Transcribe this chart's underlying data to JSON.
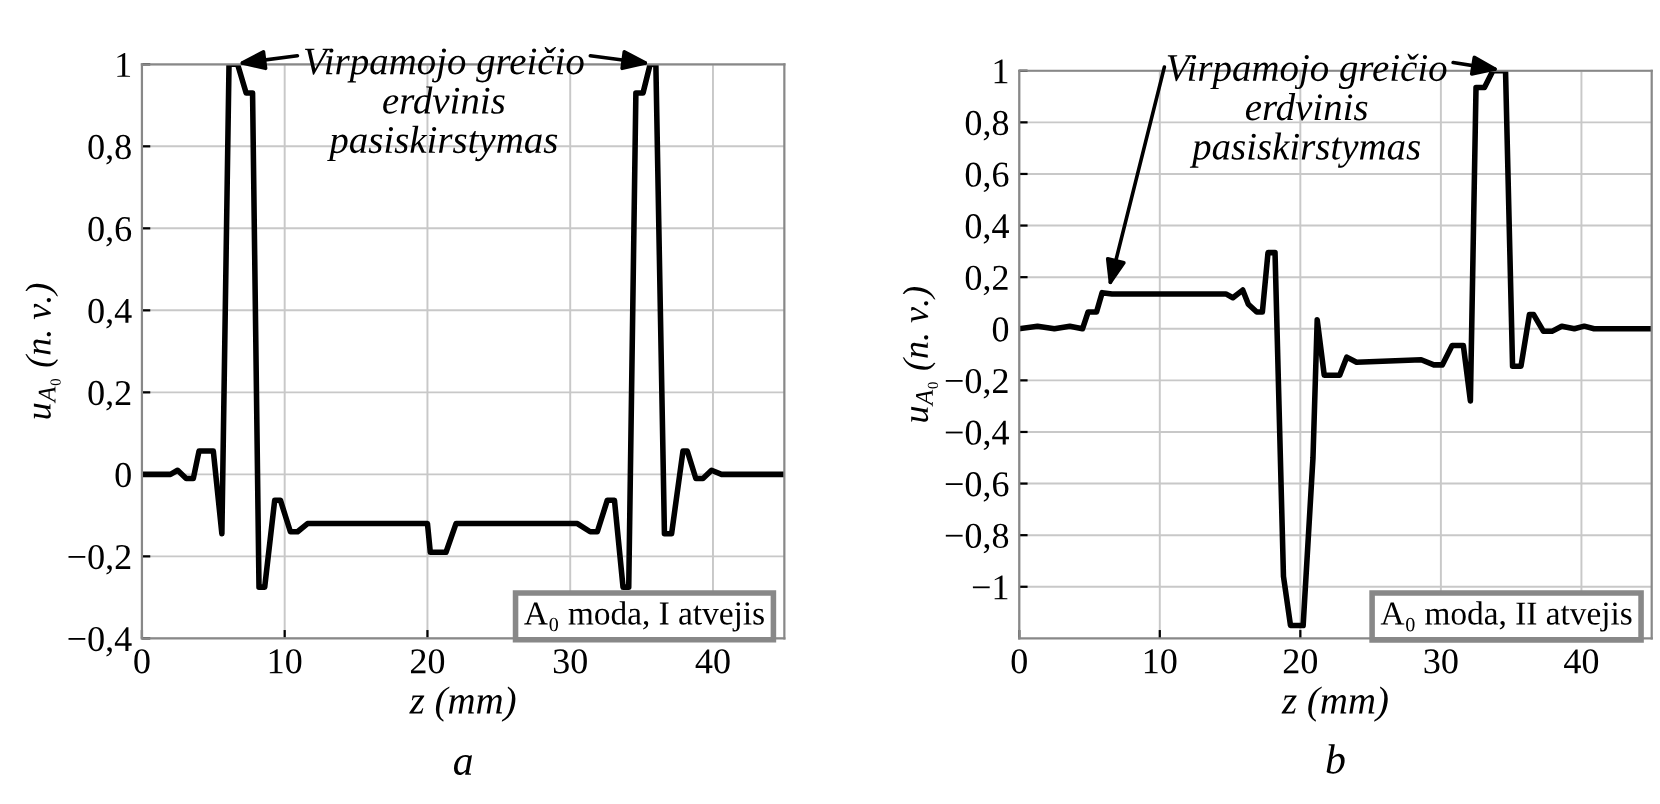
{
  "chart_data": [
    {
      "type": "line",
      "xlabel": "z (mm)",
      "ylabel": "u$_{A₀}$ (n. v.)",
      "xlim": [
        0,
        45
      ],
      "ylim": [
        -0.4,
        1
      ],
      "xticks": [
        0,
        10,
        20,
        30,
        40
      ],
      "yticks": [
        {
          "value": -0.4,
          "label": "−0,4"
        },
        {
          "value": -0.2,
          "label": "−0,2"
        },
        0,
        {
          "value": 0.2,
          "label": "0,2"
        },
        {
          "value": 0.4,
          "label": "0,4"
        },
        {
          "value": 0.6,
          "label": "0,6"
        },
        {
          "value": 0.8,
          "label": "0,8"
        },
        1
      ],
      "grid": true,
      "legend": false,
      "marker": "none",
      "line_style": "solid",
      "series": [
        {
          "color": "#000000",
          "x": [
            0,
            2.0,
            2.5,
            3.1,
            3.6,
            4.0,
            5.0,
            5.6,
            6.1,
            6.7,
            7.3,
            7.75,
            8.2,
            8.6,
            9.3,
            9.7,
            10.4,
            10.9,
            11.6,
            20.0,
            20.2,
            21.3,
            22.0,
            30.5,
            31.4,
            31.9,
            32.6,
            33.1,
            33.7,
            34.1,
            34.6,
            35.1,
            35.6,
            36.0,
            36.6,
            37.1,
            37.9,
            38.2,
            38.8,
            39.3,
            39.9,
            40.6,
            45
          ],
          "values": [
            0,
            0,
            0.01,
            -0.01,
            -0.01,
            0.057,
            0.057,
            -0.145,
            1.0,
            1.0,
            0.93,
            0.93,
            -0.275,
            -0.275,
            -0.063,
            -0.063,
            -0.14,
            -0.14,
            -0.12,
            -0.12,
            -0.19,
            -0.19,
            -0.12,
            -0.12,
            -0.14,
            -0.14,
            -0.063,
            -0.063,
            -0.275,
            -0.275,
            0.93,
            0.93,
            1.0,
            1.0,
            -0.145,
            -0.145,
            0.057,
            0.057,
            -0.01,
            -0.01,
            0.01,
            0,
            0
          ]
        }
      ],
      "annotations": [
        {
          "text": "Virpamojo greičio\nerdvinis\npasiskirstymas",
          "x": 6.3,
          "y": 1
        },
        "A₀ moda, I atvejis",
        "a"
      ]
    },
    {
      "type": "line",
      "xlabel": "z (mm)",
      "ylabel": "u$_{A₀}$ (n. v.)",
      "xlim": [
        0,
        45
      ],
      "ylim": [
        -1.2,
        1
      ],
      "xticks": [
        0,
        10,
        20,
        30,
        40
      ],
      "yticks": [
        {
          "value": -1,
          "label": "−1"
        },
        {
          "value": -0.8,
          "label": "−0,8"
        },
        {
          "value": -0.6,
          "label": "−0,6"
        },
        {
          "value": -0.4,
          "label": "−0,4"
        },
        {
          "value": -0.2,
          "label": "−0,2"
        },
        0,
        {
          "value": 0.2,
          "label": "0,2"
        },
        {
          "value": 0.4,
          "label": "0,4"
        },
        {
          "value": 0.6,
          "label": "0,6"
        },
        {
          "value": 0.8,
          "label": "0,8"
        },
        1
      ],
      "grid": true,
      "legend": false,
      "marker": "none",
      "line_style": "solid",
      "series": [
        {
          "color": "#000000",
          "x": [
            0,
            1.3,
            2.5,
            3.6,
            4.5,
            4.9,
            5.5,
            5.9,
            6.6,
            14.7,
            15.2,
            15.9,
            16.3,
            16.9,
            17.3,
            17.7,
            18.2,
            18.8,
            19.3,
            20.2,
            20.9,
            21.2,
            21.7,
            22.8,
            23.3,
            24.0,
            28.6,
            29.5,
            30.1,
            30.8,
            31.6,
            32.1,
            32.5,
            33.1,
            33.7,
            34.6,
            35.1,
            35.7,
            36.3,
            36.6,
            37.3,
            37.9,
            38.6,
            39.5,
            40.2,
            40.9,
            45
          ],
          "values": [
            0,
            0.01,
            0,
            0.01,
            0,
            0.065,
            0.065,
            0.14,
            0.135,
            0.135,
            0.12,
            0.15,
            0.095,
            0.065,
            0.065,
            0.295,
            0.295,
            -0.96,
            -1.15,
            -1.15,
            -0.5,
            0.035,
            -0.18,
            -0.18,
            -0.11,
            -0.13,
            -0.12,
            -0.14,
            -0.14,
            -0.065,
            -0.065,
            -0.28,
            0.935,
            0.935,
            1.0,
            1.0,
            -0.145,
            -0.145,
            0.055,
            0.055,
            -0.01,
            -0.01,
            0.01,
            0,
            0.01,
            0,
            0
          ]
        }
      ],
      "annotations": [
        {
          "text": "Virpamojo greičio\nerdvinis\npasiskirstymas",
          "x": 6.3,
          "y": 0.14
        },
        "A₀ moda, II atvejis",
        "b"
      ]
    }
  ]
}
